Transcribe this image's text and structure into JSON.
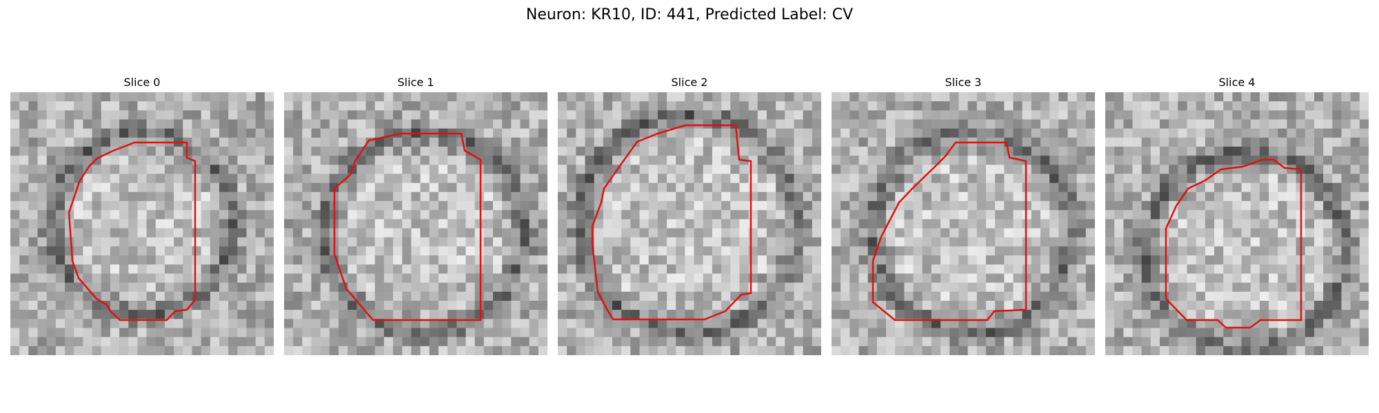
{
  "figure": {
    "title": "Neuron: KR10, ID: 441, Predicted Label: CV",
    "contour_color": "#e01010",
    "colormap": "grayscale"
  },
  "slices": [
    {
      "title": "Slice 0"
    },
    {
      "title": "Slice 1"
    },
    {
      "title": "Slice 2"
    },
    {
      "title": "Slice 3"
    },
    {
      "title": "Slice 4"
    }
  ]
}
